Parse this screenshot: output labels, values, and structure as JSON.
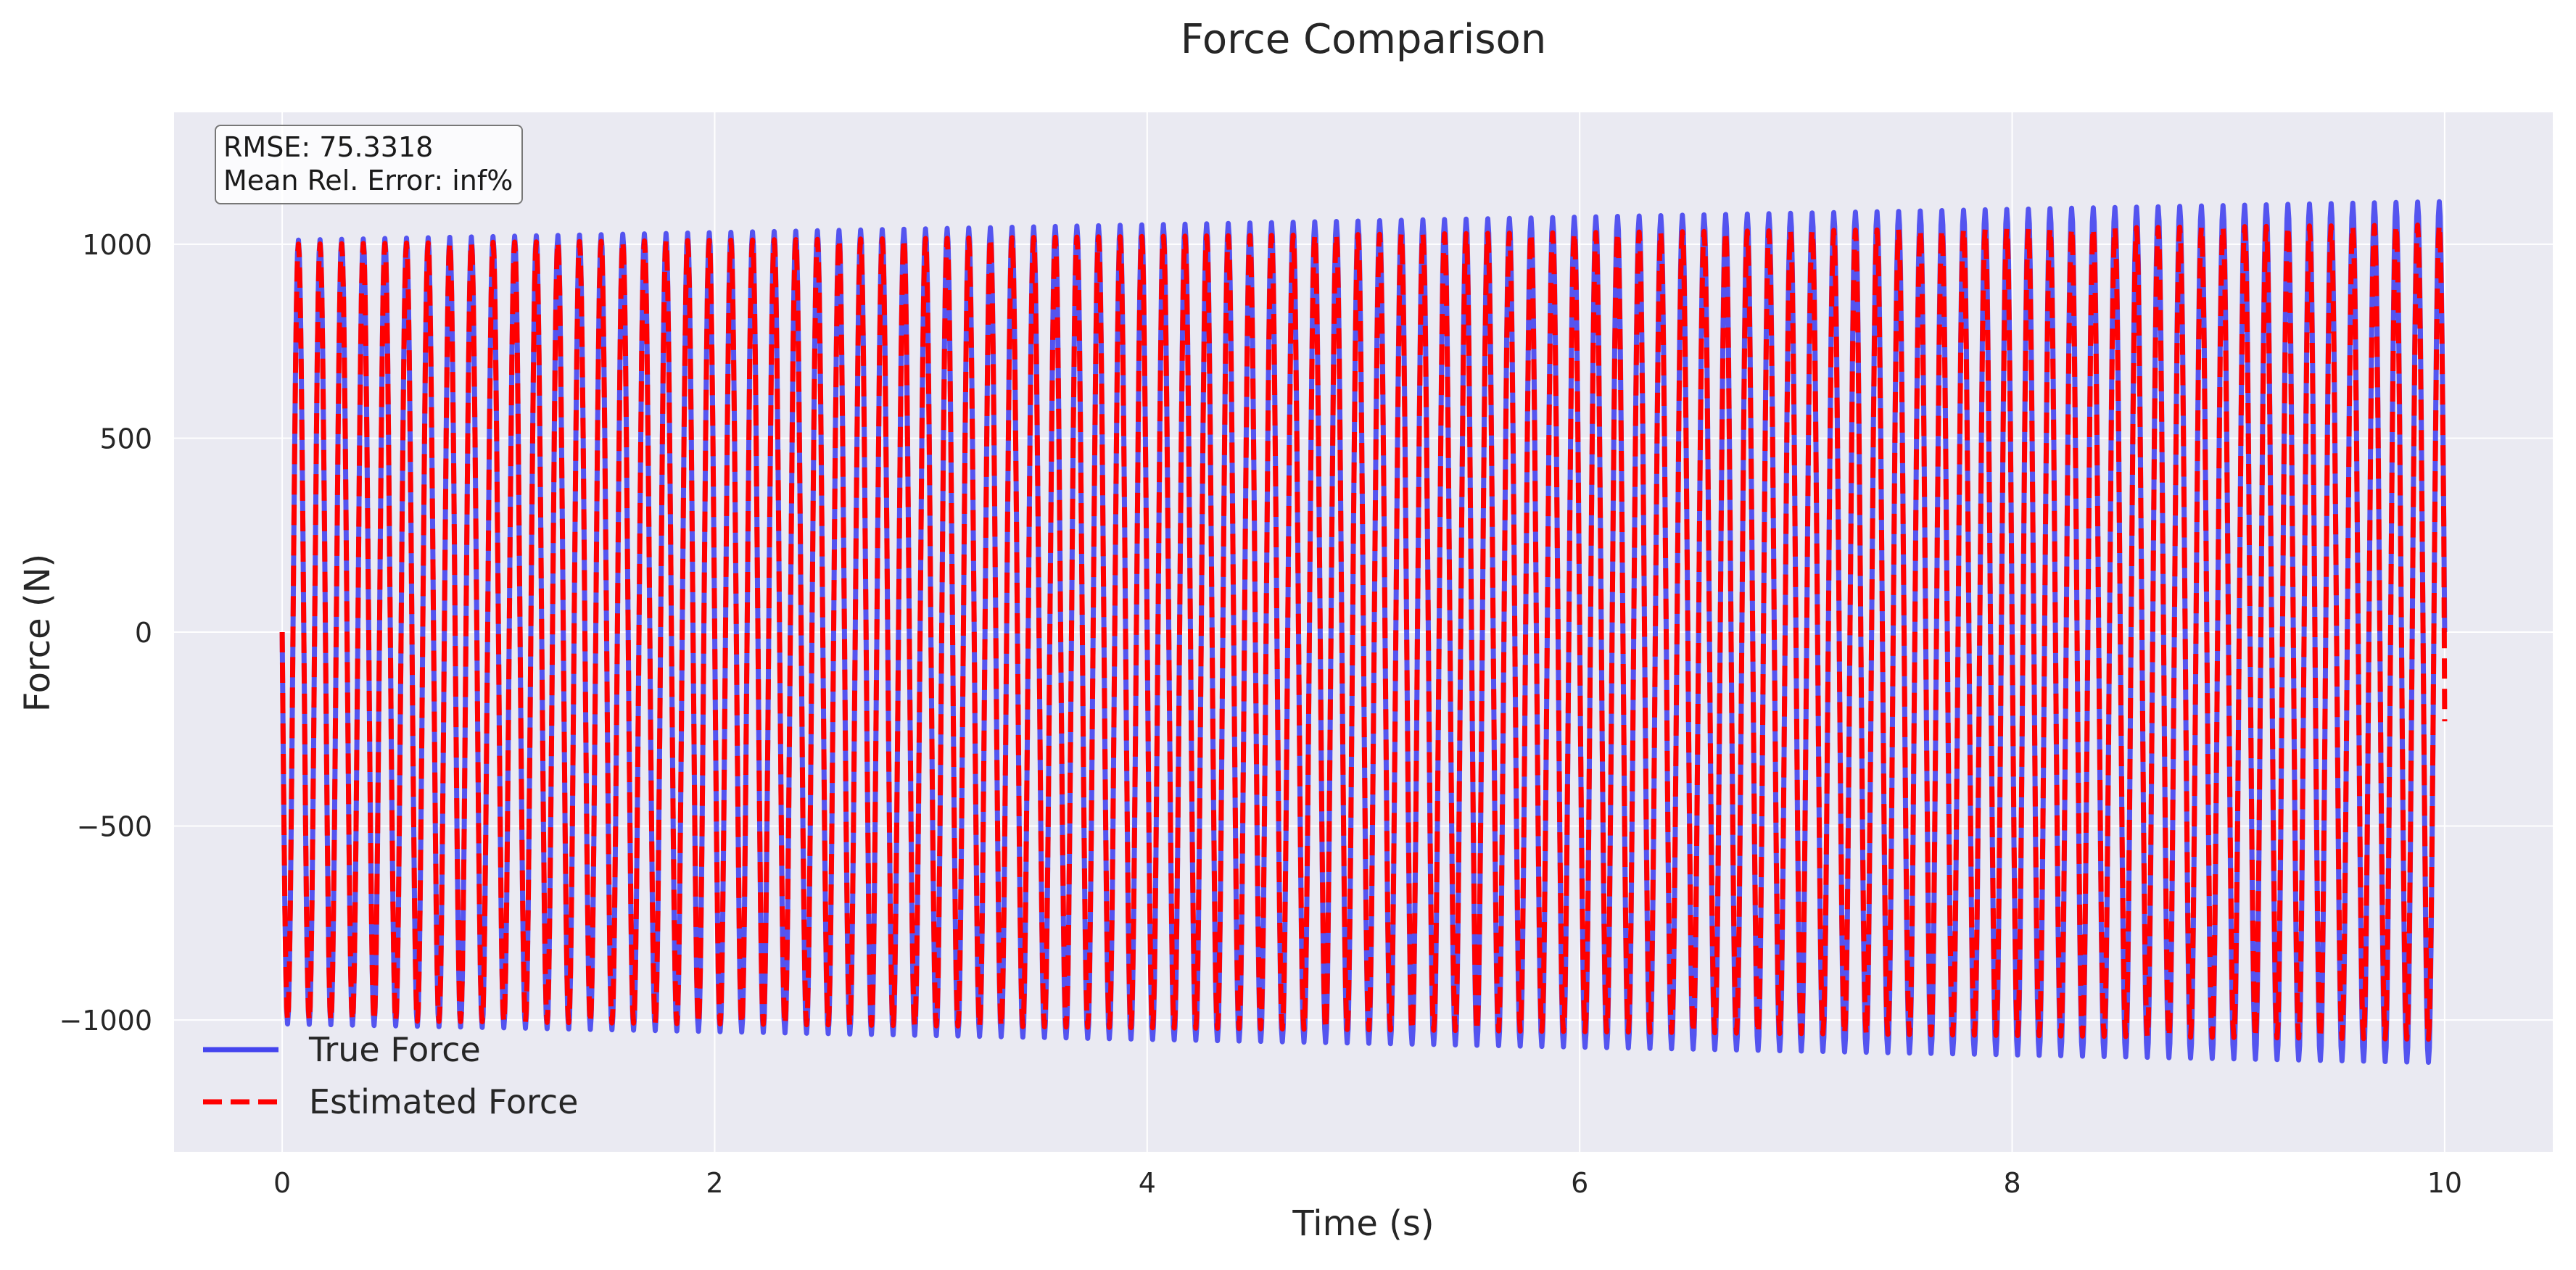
{
  "chart_data": {
    "type": "line",
    "title": "Force Comparison",
    "xlabel": "Time (s)",
    "ylabel": "Force (N)",
    "xlim": [
      -0.5,
      10.5
    ],
    "ylim": [
      -1340,
      1340
    ],
    "xticks": [
      0,
      2,
      4,
      6,
      8,
      10
    ],
    "xtick_labels": [
      "0",
      "2",
      "4",
      "6",
      "8",
      "10"
    ],
    "yticks": [
      -1000,
      -500,
      0,
      500,
      1000
    ],
    "ytick_labels": [
      "−1000",
      "−500",
      "0",
      "500",
      "1000"
    ],
    "grid": true,
    "legend_position": "lower-left",
    "annotation": {
      "line1": "RMSE: 75.3318",
      "line2": "Mean Rel. Error: inf%"
    },
    "series": [
      {
        "name": "True Force",
        "style": "solid",
        "color": "#4444ee",
        "description_values": {
          "x_start": 0,
          "x_end": 10,
          "cycles": 100,
          "amplitude_start": 1010,
          "amplitude_end": 1110,
          "y_start": 0,
          "y_end": 0
        }
      },
      {
        "name": "Estimated Force",
        "style": "dashed",
        "color": "#ff0000",
        "description_values": {
          "x_start": 0,
          "x_end": 10,
          "cycles": 100,
          "amplitude_start": 1000,
          "amplitude_end": 1050,
          "y_start": 0,
          "y_end": -230
        }
      }
    ]
  },
  "colors": {
    "plot_background": "#eaeaf2",
    "grid": "#ffffff",
    "text": "#262626"
  }
}
